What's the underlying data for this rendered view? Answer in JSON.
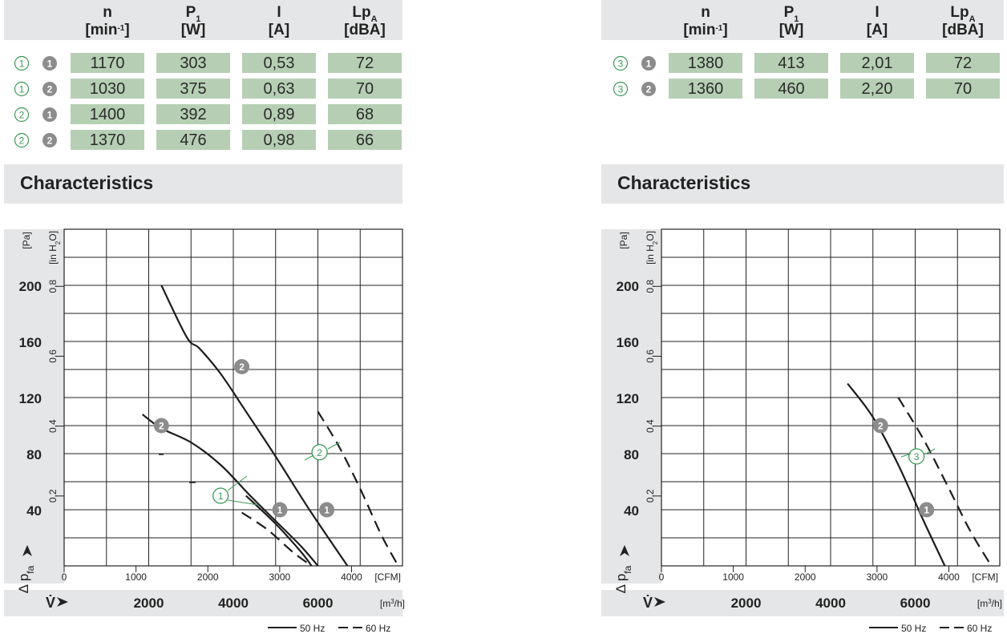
{
  "table_headers": [
    {
      "main": "n",
      "unit_open": "[min",
      "unit_sup": "-1",
      "unit_close": "]"
    },
    {
      "main": "P",
      "main_sub": "1",
      "unit": "[W]"
    },
    {
      "main": "I",
      "unit": "[A]"
    },
    {
      "main": "Lp",
      "main_sub": "A",
      "unit": "[dBA]"
    }
  ],
  "tables": [
    {
      "rows": [
        {
          "curve": "1",
          "mode": "1",
          "values": [
            "1170",
            "303",
            "0,53",
            "72"
          ]
        },
        {
          "curve": "1",
          "mode": "2",
          "values": [
            "1030",
            "375",
            "0,63",
            "70"
          ]
        },
        {
          "curve": "2",
          "mode": "1",
          "values": [
            "1400",
            "392",
            "0,89",
            "68"
          ]
        },
        {
          "curve": "2",
          "mode": "2",
          "values": [
            "1370",
            "476",
            "0,98",
            "66"
          ]
        }
      ]
    },
    {
      "rows": [
        {
          "curve": "3",
          "mode": "1",
          "values": [
            "1380",
            "413",
            "2,01",
            "72"
          ]
        },
        {
          "curve": "3",
          "mode": "2",
          "values": [
            "1360",
            "460",
            "2,20",
            "70"
          ]
        }
      ]
    }
  ],
  "section_title": "Characteristics",
  "axis": {
    "pa_unit": "[Pa]",
    "inh2o_unit": "[in H",
    "inh2o_sub": "2",
    "inh2o_close": "O]",
    "cfm_unit": "[CFM]",
    "m3h_unit": "[m",
    "m3h_sup": "3",
    "m3h_close": "/h]",
    "dp_label": "Δ p",
    "dp_sub": "fa",
    "v_label": "V̇"
  },
  "legend": {
    "solid": "50 Hz",
    "dashed": "60 Hz"
  },
  "colors": {
    "cell_bg": "#b6cfb4",
    "header_bg": "#e5e6e7",
    "badge_gray": "#8c8c8c",
    "badge_green": "#3b9a56",
    "grid": "#222222"
  },
  "chart_data": [
    {
      "type": "line",
      "title": "Characteristics",
      "x_cfm_ticks": [
        "0",
        "1000",
        "2000",
        "3000",
        "4000"
      ],
      "x_m3h_ticks": [
        "2000",
        "4000",
        "6000"
      ],
      "y_pa_ticks": [
        "40",
        "80",
        "120",
        "160",
        "200"
      ],
      "y_inh2o_ticks": [
        "0,2",
        "0,4",
        "0,6",
        "0,8"
      ],
      "xlim_m3h": [
        0,
        8000
      ],
      "ylim_pa": [
        0,
        240
      ],
      "series": [
        {
          "style": "solid",
          "points": [
            [
              2300,
              200
            ],
            [
              2900,
              163
            ],
            [
              3200,
              155
            ],
            [
              3700,
              137
            ],
            [
              4300,
              110
            ],
            [
              5000,
              78
            ],
            [
              5800,
              40
            ],
            [
              6700,
              0
            ]
          ]
        },
        {
          "style": "solid",
          "points": [
            [
              1850,
              108
            ],
            [
              2300,
              98
            ],
            [
              3000,
              88
            ],
            [
              3700,
              72
            ],
            [
              4400,
              50
            ],
            [
              5000,
              32
            ],
            [
              5600,
              14
            ],
            [
              6000,
              0
            ]
          ]
        },
        {
          "style": "solid",
          "points": [
            [
              4300,
              50
            ],
            [
              5000,
              30
            ],
            [
              5600,
              10
            ],
            [
              5850,
              0
            ]
          ]
        },
        {
          "style": "dashed",
          "points": [
            [
              6000,
              110
            ],
            [
              6500,
              85
            ],
            [
              7000,
              55
            ],
            [
              7500,
              22
            ],
            [
              7900,
              0
            ]
          ]
        },
        {
          "style": "dashed",
          "points": [
            [
              4200,
              38
            ],
            [
              4800,
              26
            ],
            [
              5400,
              10
            ],
            [
              5850,
              0
            ]
          ]
        }
      ],
      "markers": [
        {
          "label": "2",
          "kind": "gray",
          "x": 4200,
          "y": 142
        },
        {
          "label": "2",
          "kind": "gray",
          "x": 2300,
          "y": 100
        },
        {
          "label": "1",
          "kind": "gray",
          "x": 5100,
          "y": 40
        },
        {
          "label": "1",
          "kind": "gray",
          "x": 6210,
          "y": 40
        },
        {
          "label": "1",
          "kind": "green",
          "x": 3700,
          "y": 50
        },
        {
          "label": "2",
          "kind": "green",
          "x": 6040,
          "y": 81
        }
      ]
    },
    {
      "type": "line",
      "title": "Characteristics",
      "x_cfm_ticks": [
        "0",
        "1000",
        "2000",
        "3000",
        "4000"
      ],
      "x_m3h_ticks": [
        "2000",
        "4000",
        "6000"
      ],
      "y_pa_ticks": [
        "40",
        "80",
        "120",
        "160",
        "200"
      ],
      "y_inh2o_ticks": [
        "0,2",
        "0,4",
        "0,6",
        "0,8"
      ],
      "xlim_m3h": [
        0,
        8000
      ],
      "ylim_pa": [
        0,
        240
      ],
      "series": [
        {
          "style": "solid",
          "points": [
            [
              4400,
              130
            ],
            [
              5000,
              106
            ],
            [
              5600,
              72
            ],
            [
              6200,
              32
            ],
            [
              6700,
              0
            ]
          ]
        },
        {
          "style": "dashed",
          "points": [
            [
              5600,
              120
            ],
            [
              6200,
              90
            ],
            [
              6800,
              55
            ],
            [
              7300,
              25
            ],
            [
              7800,
              0
            ]
          ]
        }
      ],
      "markers": [
        {
          "label": "2",
          "kind": "gray",
          "x": 5180,
          "y": 100
        },
        {
          "label": "1",
          "kind": "gray",
          "x": 6270,
          "y": 40
        },
        {
          "label": "3",
          "kind": "green",
          "x": 6030,
          "y": 78
        }
      ]
    }
  ]
}
